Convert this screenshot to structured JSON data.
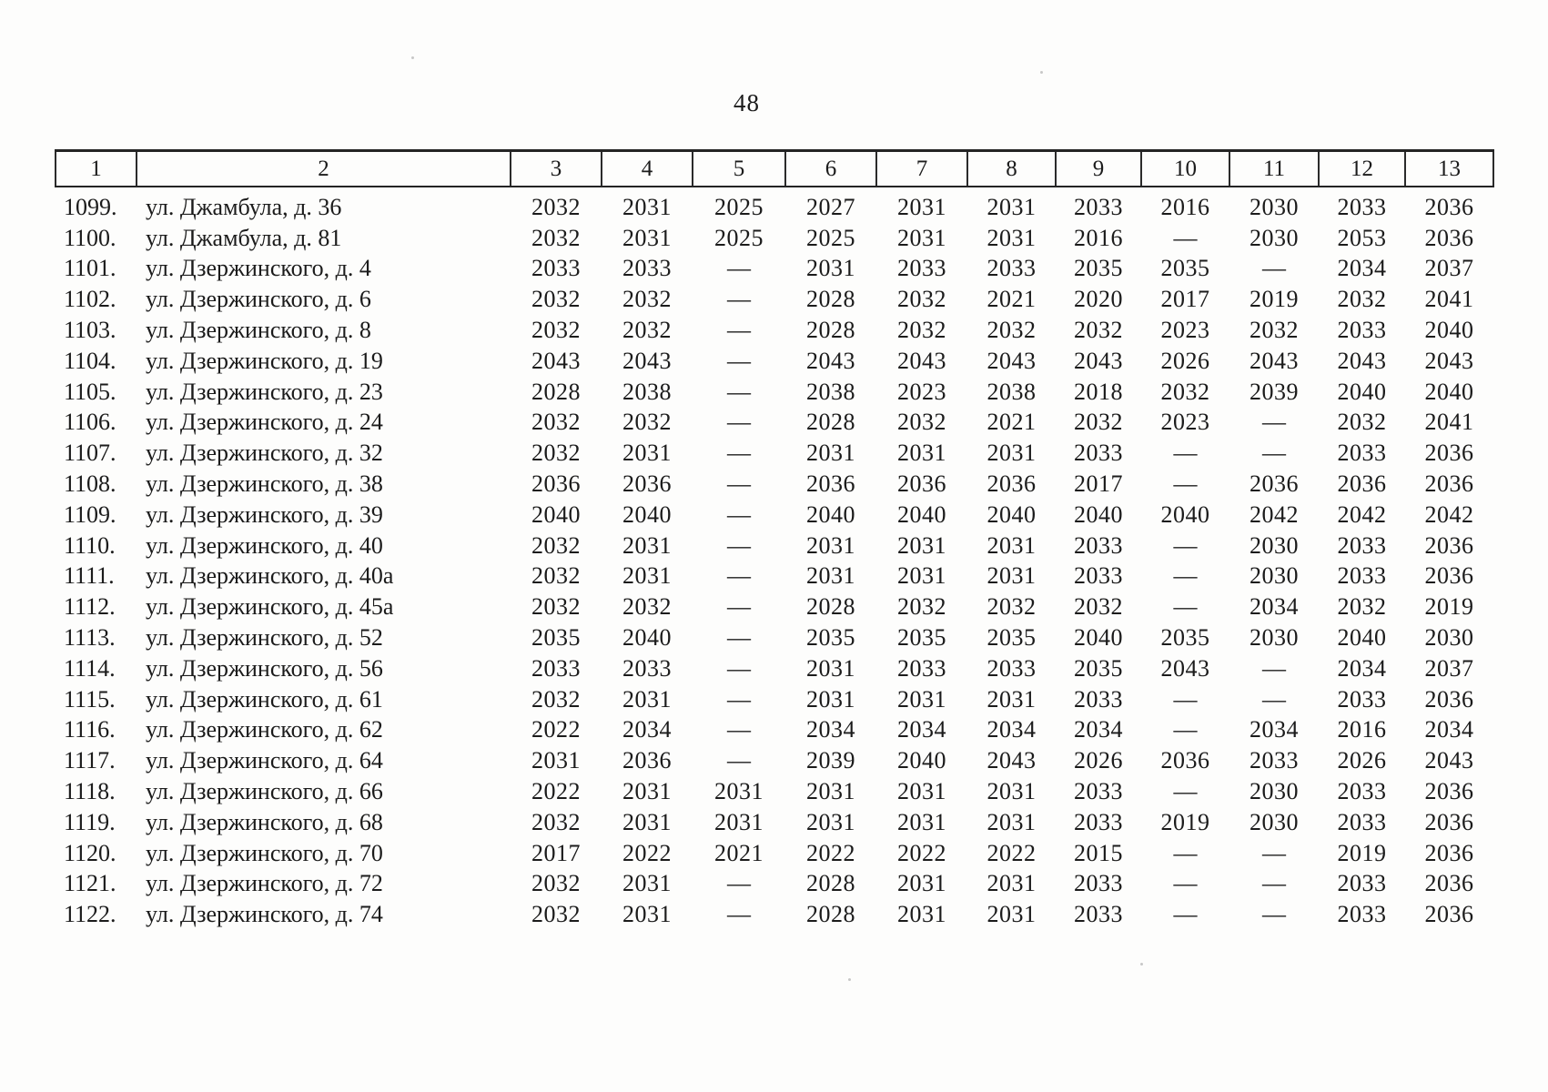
{
  "page": {
    "number": "48"
  },
  "table": {
    "headers": [
      "1",
      "2",
      "3",
      "4",
      "5",
      "6",
      "7",
      "8",
      "9",
      "10",
      "11",
      "12",
      "13"
    ],
    "empty_marker": "—",
    "rows": [
      {
        "num": "1099.",
        "address": "ул. Джамбула, д. 36",
        "values": [
          "2032",
          "2031",
          "2025",
          "2027",
          "2031",
          "2031",
          "2033",
          "2016",
          "2030",
          "2033",
          "2036"
        ]
      },
      {
        "num": "1100.",
        "address": "ул. Джамбула, д. 81",
        "values": [
          "2032",
          "2031",
          "2025",
          "2025",
          "2031",
          "2031",
          "2016",
          "—",
          "2030",
          "2053",
          "2036"
        ]
      },
      {
        "num": "1101.",
        "address": "ул. Дзержинского, д. 4",
        "values": [
          "2033",
          "2033",
          "—",
          "2031",
          "2033",
          "2033",
          "2035",
          "2035",
          "—",
          "2034",
          "2037"
        ]
      },
      {
        "num": "1102.",
        "address": "ул. Дзержинского, д. 6",
        "values": [
          "2032",
          "2032",
          "—",
          "2028",
          "2032",
          "2021",
          "2020",
          "2017",
          "2019",
          "2032",
          "2041"
        ]
      },
      {
        "num": "1103.",
        "address": "ул. Дзержинского, д. 8",
        "values": [
          "2032",
          "2032",
          "—",
          "2028",
          "2032",
          "2032",
          "2032",
          "2023",
          "2032",
          "2033",
          "2040"
        ]
      },
      {
        "num": "1104.",
        "address": "ул. Дзержинского, д. 19",
        "values": [
          "2043",
          "2043",
          "—",
          "2043",
          "2043",
          "2043",
          "2043",
          "2026",
          "2043",
          "2043",
          "2043"
        ]
      },
      {
        "num": "1105.",
        "address": "ул. Дзержинского, д. 23",
        "values": [
          "2028",
          "2038",
          "—",
          "2038",
          "2023",
          "2038",
          "2018",
          "2032",
          "2039",
          "2040",
          "2040"
        ]
      },
      {
        "num": "1106.",
        "address": "ул. Дзержинского, д. 24",
        "values": [
          "2032",
          "2032",
          "—",
          "2028",
          "2032",
          "2021",
          "2032",
          "2023",
          "—",
          "2032",
          "2041"
        ]
      },
      {
        "num": "1107.",
        "address": "ул. Дзержинского, д. 32",
        "values": [
          "2032",
          "2031",
          "—",
          "2031",
          "2031",
          "2031",
          "2033",
          "—",
          "—",
          "2033",
          "2036"
        ]
      },
      {
        "num": "1108.",
        "address": "ул. Дзержинского, д. 38",
        "values": [
          "2036",
          "2036",
          "—",
          "2036",
          "2036",
          "2036",
          "2017",
          "—",
          "2036",
          "2036",
          "2036"
        ]
      },
      {
        "num": "1109.",
        "address": "ул. Дзержинского, д. 39",
        "values": [
          "2040",
          "2040",
          "—",
          "2040",
          "2040",
          "2040",
          "2040",
          "2040",
          "2042",
          "2042",
          "2042"
        ]
      },
      {
        "num": "1110.",
        "address": "ул. Дзержинского, д. 40",
        "values": [
          "2032",
          "2031",
          "—",
          "2031",
          "2031",
          "2031",
          "2033",
          "—",
          "2030",
          "2033",
          "2036"
        ]
      },
      {
        "num": "1111.",
        "address": "ул. Дзержинского, д. 40а",
        "values": [
          "2032",
          "2031",
          "—",
          "2031",
          "2031",
          "2031",
          "2033",
          "—",
          "2030",
          "2033",
          "2036"
        ]
      },
      {
        "num": "1112.",
        "address": "ул. Дзержинского, д. 45а",
        "values": [
          "2032",
          "2032",
          "—",
          "2028",
          "2032",
          "2032",
          "2032",
          "—",
          "2034",
          "2032",
          "2019"
        ]
      },
      {
        "num": "1113.",
        "address": "ул. Дзержинского, д. 52",
        "values": [
          "2035",
          "2040",
          "—",
          "2035",
          "2035",
          "2035",
          "2040",
          "2035",
          "2030",
          "2040",
          "2030"
        ]
      },
      {
        "num": "1114.",
        "address": "ул. Дзержинского, д. 56",
        "values": [
          "2033",
          "2033",
          "—",
          "2031",
          "2033",
          "2033",
          "2035",
          "2043",
          "—",
          "2034",
          "2037"
        ]
      },
      {
        "num": "1115.",
        "address": "ул. Дзержинского, д. 61",
        "values": [
          "2032",
          "2031",
          "—",
          "2031",
          "2031",
          "2031",
          "2033",
          "—",
          "—",
          "2033",
          "2036"
        ]
      },
      {
        "num": "1116.",
        "address": "ул. Дзержинского, д. 62",
        "values": [
          "2022",
          "2034",
          "—",
          "2034",
          "2034",
          "2034",
          "2034",
          "—",
          "2034",
          "2016",
          "2034"
        ]
      },
      {
        "num": "1117.",
        "address": "ул. Дзержинского, д. 64",
        "values": [
          "2031",
          "2036",
          "—",
          "2039",
          "2040",
          "2043",
          "2026",
          "2036",
          "2033",
          "2026",
          "2043"
        ]
      },
      {
        "num": "1118.",
        "address": "ул. Дзержинского, д. 66",
        "values": [
          "2022",
          "2031",
          "2031",
          "2031",
          "2031",
          "2031",
          "2033",
          "—",
          "2030",
          "2033",
          "2036"
        ]
      },
      {
        "num": "1119.",
        "address": "ул. Дзержинского, д. 68",
        "values": [
          "2032",
          "2031",
          "2031",
          "2031",
          "2031",
          "2031",
          "2033",
          "2019",
          "2030",
          "2033",
          "2036"
        ]
      },
      {
        "num": "1120.",
        "address": "ул. Дзержинского, д. 70",
        "values": [
          "2017",
          "2022",
          "2021",
          "2022",
          "2022",
          "2022",
          "2015",
          "—",
          "—",
          "2019",
          "2036"
        ]
      },
      {
        "num": "1121.",
        "address": "ул. Дзержинского, д. 72",
        "values": [
          "2032",
          "2031",
          "—",
          "2028",
          "2031",
          "2031",
          "2033",
          "—",
          "—",
          "2033",
          "2036"
        ]
      },
      {
        "num": "1122.",
        "address": "ул. Дзержинского, д. 74",
        "values": [
          "2032",
          "2031",
          "—",
          "2028",
          "2031",
          "2031",
          "2033",
          "—",
          "—",
          "2033",
          "2036"
        ]
      }
    ]
  }
}
